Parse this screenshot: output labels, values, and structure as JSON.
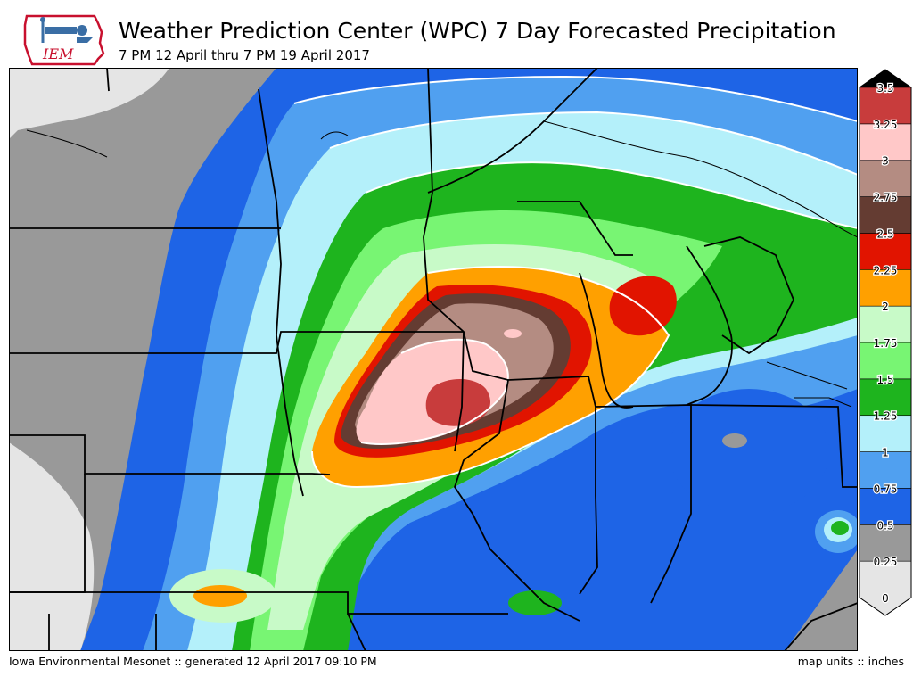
{
  "header": {
    "logo_text": "IEM",
    "title": "Weather Prediction Center (WPC) 7 Day Forecasted Precipitation",
    "subtitle": "7 PM 12 April thru 7 PM 19 April 2017"
  },
  "legend": {
    "levels": [
      {
        "label": "0",
        "color": "#e5e5e5"
      },
      {
        "label": "0.25",
        "color": "#999999"
      },
      {
        "label": "0.5",
        "color": "#1e64e6"
      },
      {
        "label": "0.75",
        "color": "#50a0f0"
      },
      {
        "label": "1",
        "color": "#b4f0fa"
      },
      {
        "label": "1.25",
        "color": "#1eb41e"
      },
      {
        "label": "1.5",
        "color": "#78f573"
      },
      {
        "label": "1.75",
        "color": "#c8fac8"
      },
      {
        "label": "2",
        "color": "#ffa000"
      },
      {
        "label": "2.25",
        "color": "#e11400"
      },
      {
        "label": "2.5",
        "color": "#643c32"
      },
      {
        "label": "2.75",
        "color": "#b48c82"
      },
      {
        "label": "3",
        "color": "#ffc8c8"
      },
      {
        "label": "3.25",
        "color": "#c83c3c"
      },
      {
        "label": "3.5",
        "color": "#000000"
      }
    ]
  },
  "footer": {
    "source": "Iowa Environmental Mesonet :: generated 12 April 2017 09:10 PM",
    "units": "map units :: inches"
  }
}
